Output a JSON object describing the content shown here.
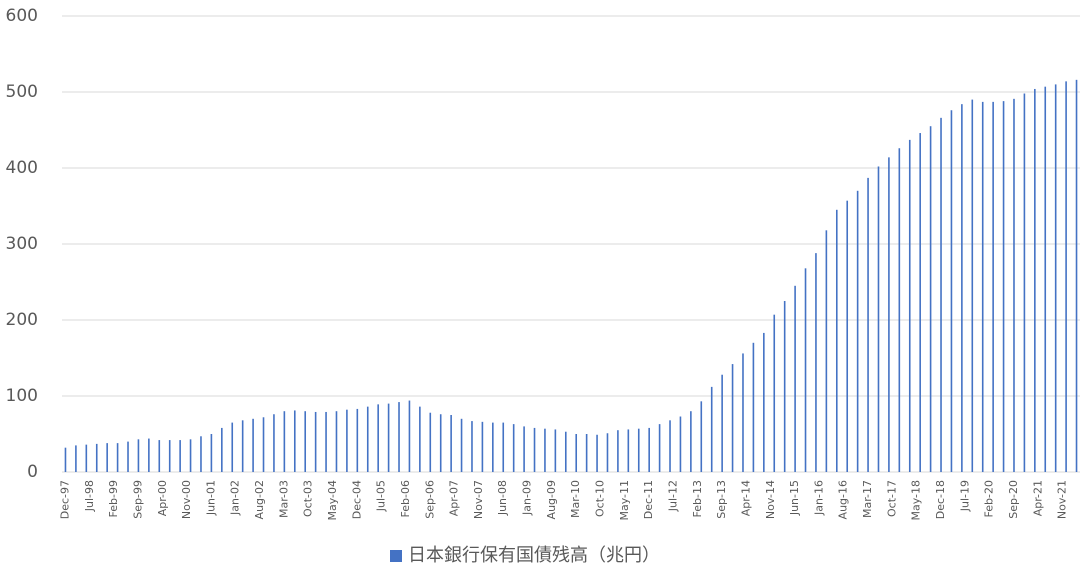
{
  "chart_data": {
    "type": "bar",
    "x": [
      "1997-12",
      "1998-03",
      "1998-06",
      "1998-09",
      "1998-12",
      "1999-03",
      "1999-06",
      "1999-09",
      "1999-12",
      "2000-03",
      "2000-06",
      "2000-09",
      "2000-12",
      "2001-03",
      "2001-06",
      "2001-09",
      "2001-12",
      "2002-03",
      "2002-06",
      "2002-09",
      "2002-12",
      "2003-03",
      "2003-06",
      "2003-09",
      "2003-12",
      "2004-03",
      "2004-06",
      "2004-09",
      "2004-12",
      "2005-03",
      "2005-06",
      "2005-09",
      "2005-12",
      "2006-03",
      "2006-06",
      "2006-09",
      "2006-12",
      "2007-03",
      "2007-06",
      "2007-09",
      "2007-12",
      "2008-03",
      "2008-06",
      "2008-09",
      "2008-12",
      "2009-03",
      "2009-06",
      "2009-09",
      "2009-12",
      "2010-03",
      "2010-06",
      "2010-09",
      "2010-12",
      "2011-03",
      "2011-06",
      "2011-09",
      "2011-12",
      "2012-03",
      "2012-06",
      "2012-09",
      "2012-12",
      "2013-03",
      "2013-06",
      "2013-09",
      "2013-12",
      "2014-03",
      "2014-06",
      "2014-09",
      "2014-12",
      "2015-03",
      "2015-06",
      "2015-09",
      "2015-12",
      "2016-03",
      "2016-06",
      "2016-09",
      "2016-12",
      "2017-03",
      "2017-06",
      "2017-09",
      "2017-12",
      "2018-03",
      "2018-06",
      "2018-09",
      "2018-12",
      "2019-03",
      "2019-06",
      "2019-09",
      "2019-12",
      "2020-03",
      "2020-06",
      "2020-09",
      "2020-12",
      "2021-03",
      "2021-06",
      "2021-09",
      "2021-12",
      "2022-03"
    ],
    "series": [
      {
        "name": "日本銀行保有国債残高（兆円）",
        "color": "#4472c4",
        "values": [
          32,
          35,
          36,
          37,
          38,
          38,
          40,
          43,
          44,
          42,
          42,
          42,
          43,
          47,
          50,
          58,
          65,
          68,
          70,
          72,
          76,
          80,
          81,
          80,
          79,
          79,
          80,
          82,
          83,
          86,
          89,
          90,
          92,
          94,
          86,
          78,
          76,
          75,
          70,
          67,
          66,
          65,
          65,
          63,
          60,
          58,
          57,
          56,
          53,
          50,
          50,
          49,
          51,
          55,
          56,
          57,
          58,
          63,
          68,
          73,
          80,
          93,
          112,
          128,
          142,
          156,
          170,
          183,
          207,
          225,
          245,
          268,
          288,
          318,
          345,
          357,
          370,
          387,
          402,
          414,
          426,
          437,
          446,
          455,
          466,
          476,
          484,
          490,
          487,
          487,
          488,
          491,
          498,
          504,
          507,
          510,
          514,
          516
        ]
      }
    ],
    "xlim": [
      "1997-11",
      "2022-04"
    ],
    "xticks": [
      {
        "value": "1997-12",
        "label": "Dec-97"
      },
      {
        "value": "1998-07",
        "label": "Jul-98"
      },
      {
        "value": "1999-02",
        "label": "Feb-99"
      },
      {
        "value": "1999-09",
        "label": "Sep-99"
      },
      {
        "value": "2000-04",
        "label": "Apr-00"
      },
      {
        "value": "2000-11",
        "label": "Nov-00"
      },
      {
        "value": "2001-06",
        "label": "Jun-01"
      },
      {
        "value": "2002-01",
        "label": "Jan-02"
      },
      {
        "value": "2002-08",
        "label": "Aug-02"
      },
      {
        "value": "2003-03",
        "label": "Mar-03"
      },
      {
        "value": "2003-10",
        "label": "Oct-03"
      },
      {
        "value": "2004-05",
        "label": "May-04"
      },
      {
        "value": "2004-12",
        "label": "Dec-04"
      },
      {
        "value": "2005-07",
        "label": "Jul-05"
      },
      {
        "value": "2006-02",
        "label": "Feb-06"
      },
      {
        "value": "2006-09",
        "label": "Sep-06"
      },
      {
        "value": "2007-04",
        "label": "Apr-07"
      },
      {
        "value": "2007-11",
        "label": "Nov-07"
      },
      {
        "value": "2008-06",
        "label": "Jun-08"
      },
      {
        "value": "2009-01",
        "label": "Jan-09"
      },
      {
        "value": "2009-08",
        "label": "Aug-09"
      },
      {
        "value": "2010-03",
        "label": "Mar-10"
      },
      {
        "value": "2010-10",
        "label": "Oct-10"
      },
      {
        "value": "2011-05",
        "label": "May-11"
      },
      {
        "value": "2011-12",
        "label": "Dec-11"
      },
      {
        "value": "2012-07",
        "label": "Jul-12"
      },
      {
        "value": "2013-02",
        "label": "Feb-13"
      },
      {
        "value": "2013-09",
        "label": "Sep-13"
      },
      {
        "value": "2014-04",
        "label": "Apr-14"
      },
      {
        "value": "2014-11",
        "label": "Nov-14"
      },
      {
        "value": "2015-06",
        "label": "Jun-15"
      },
      {
        "value": "2016-01",
        "label": "Jan-16"
      },
      {
        "value": "2016-08",
        "label": "Aug-16"
      },
      {
        "value": "2017-03",
        "label": "Mar-17"
      },
      {
        "value": "2017-10",
        "label": "Oct-17"
      },
      {
        "value": "2018-05",
        "label": "May-18"
      },
      {
        "value": "2018-12",
        "label": "Dec-18"
      },
      {
        "value": "2019-07",
        "label": "Jul-19"
      },
      {
        "value": "2020-02",
        "label": "Feb-20"
      },
      {
        "value": "2020-09",
        "label": "Sep-20"
      },
      {
        "value": "2021-04",
        "label": "Apr-21"
      },
      {
        "value": "2021-11",
        "label": "Nov-21"
      }
    ],
    "ylim": [
      0,
      600
    ],
    "yticks": [
      0,
      100,
      200,
      300,
      400,
      500,
      600
    ],
    "grid": true,
    "legend": "bottom"
  }
}
